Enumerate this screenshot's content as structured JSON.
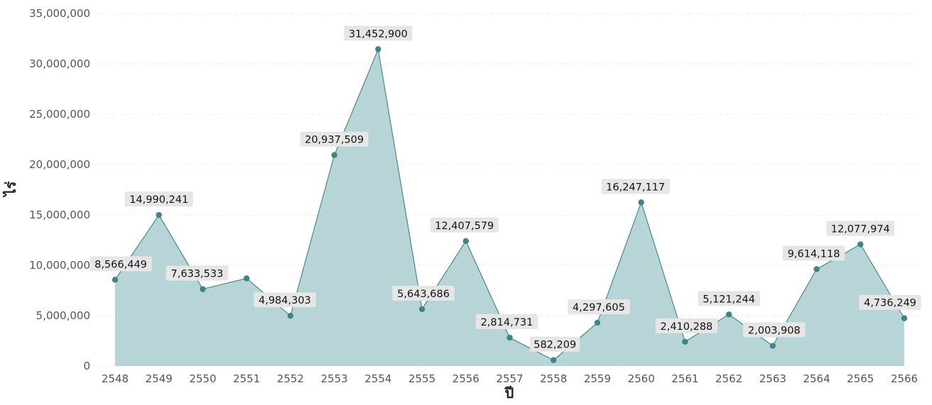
{
  "chart_data": {
    "type": "area",
    "xlabel": "ปี",
    "ylabel": "ไร่",
    "ylim": [
      0,
      35000000
    ],
    "y_ticks": [
      "0",
      "5,000,000",
      "10,000,000",
      "15,000,000",
      "20,000,000",
      "25,000,000",
      "30,000,000",
      "35,000,000"
    ],
    "y_tick_values": [
      0,
      5000000,
      10000000,
      15000000,
      20000000,
      25000000,
      30000000,
      35000000
    ],
    "categories": [
      "2548",
      "2549",
      "2550",
      "2551",
      "2552",
      "2553",
      "2554",
      "2555",
      "2556",
      "2557",
      "2558",
      "2559",
      "2560",
      "2561",
      "2562",
      "2563",
      "2564",
      "2565",
      "2566"
    ],
    "values": [
      8566449,
      14990241,
      7633533,
      8700000,
      4984303,
      20937509,
      31452900,
      5643686,
      12407579,
      2814731,
      582209,
      4297605,
      16247117,
      2410288,
      5121244,
      2003908,
      9614118,
      12077974,
      4736249
    ],
    "data_labels": [
      "8,566,449",
      "14,990,241",
      "7,633,533",
      "",
      "4,984,303",
      "20,937,509",
      "31,452,900",
      "5,643,686",
      "12,407,579",
      "2,814,731",
      "582,209",
      "4,297,605",
      "16,247,117",
      "2,410,288",
      "5,121,244",
      "2,003,908",
      "9,614,118",
      "12,077,974",
      "4,736,249"
    ],
    "colors": {
      "fill": "#b7d5d7",
      "line": "#4a8a8c",
      "marker": "#3f8587"
    },
    "grid": true,
    "legend": "none"
  }
}
